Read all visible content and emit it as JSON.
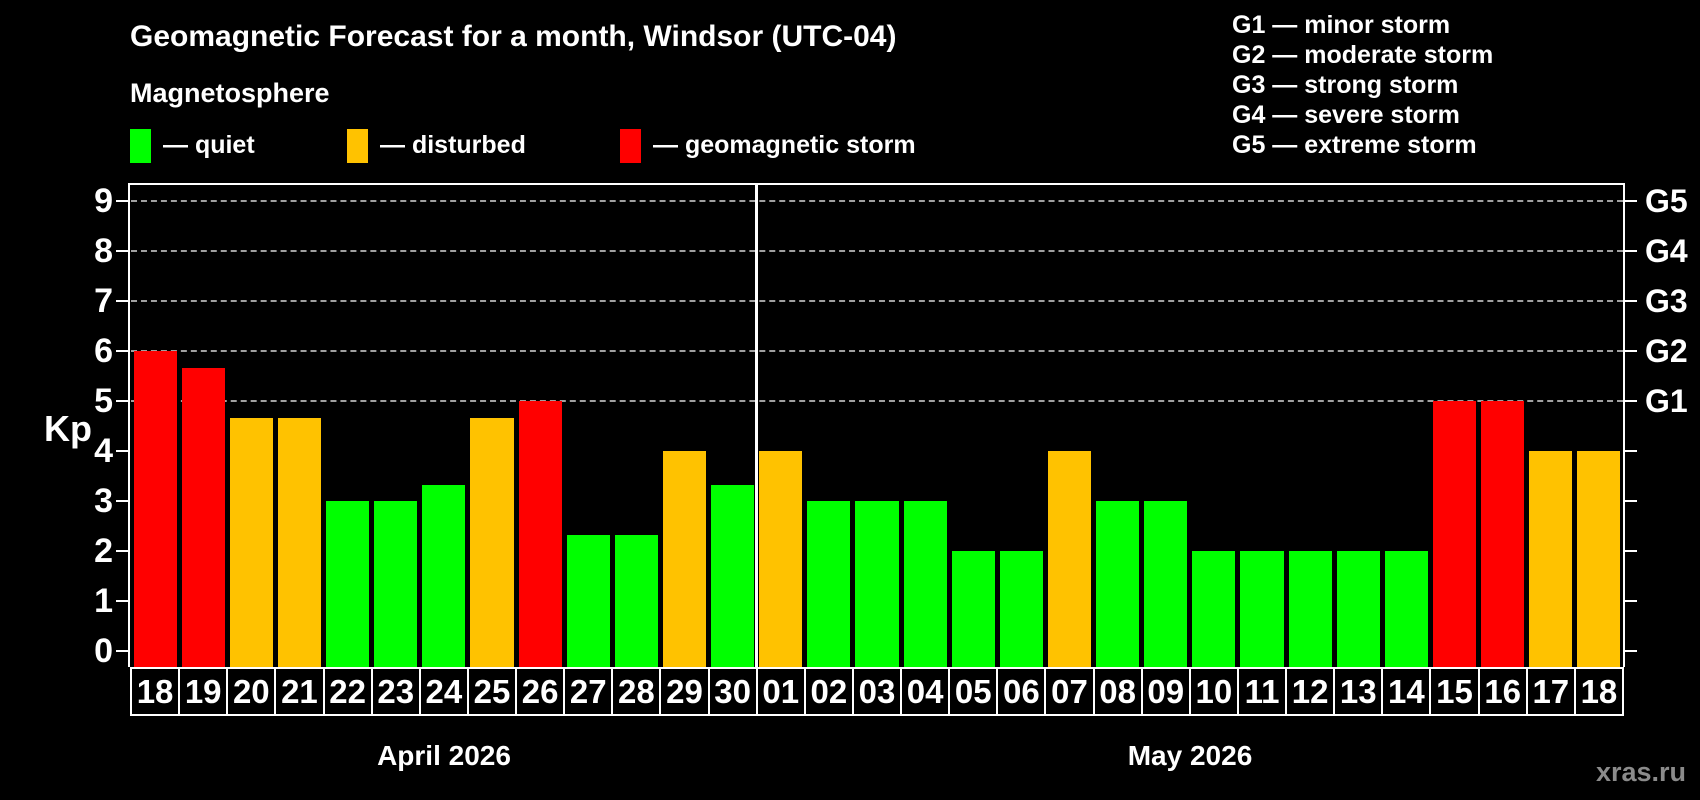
{
  "header": {
    "title": "Geomagnetic Forecast for a month, Windsor (UTC-04)",
    "subtitle": "Magnetosphere"
  },
  "legend": {
    "items": [
      {
        "key": "quiet",
        "label": "— quiet"
      },
      {
        "key": "disturbed",
        "label": "— disturbed"
      },
      {
        "key": "storm",
        "label": "— geomagnetic storm"
      }
    ]
  },
  "g_scale": {
    "items": [
      {
        "label": "G1 — minor storm"
      },
      {
        "label": "G2 — moderate storm"
      },
      {
        "label": "G3 — strong storm"
      },
      {
        "label": "G4 — severe storm"
      },
      {
        "label": "G5 — extreme storm"
      }
    ]
  },
  "colors": {
    "quiet": "#00ff00",
    "disturbed": "#ffc200",
    "storm": "#ff0000",
    "grid": "#a0a0a0",
    "axis": "#ffffff",
    "background": "#000000",
    "watermark": "#8b8b8b"
  },
  "watermark": "xras.ru",
  "chart_data": {
    "type": "bar",
    "title": "Geomagnetic Forecast for a month, Windsor (UTC-04)",
    "subtitle": "Magnetosphere",
    "xlabel": "",
    "ylabel": "Kp",
    "ylim": [
      0,
      9.36
    ],
    "yticks": [
      0,
      1,
      2,
      3,
      4,
      5,
      6,
      7,
      8,
      9
    ],
    "gridlines_at": [
      5,
      6,
      7,
      8,
      9
    ],
    "grid": true,
    "legend_position": "top-left",
    "right_axis_labels": [
      {
        "kp": 5,
        "label": "G1"
      },
      {
        "kp": 6,
        "label": "G2"
      },
      {
        "kp": 7,
        "label": "G3"
      },
      {
        "kp": 8,
        "label": "G4"
      },
      {
        "kp": 9,
        "label": "G5"
      }
    ],
    "months": [
      {
        "label": "April 2026",
        "days": [
          {
            "day": "18",
            "kp": 6.0,
            "level": "storm"
          },
          {
            "day": "19",
            "kp": 5.67,
            "level": "storm"
          },
          {
            "day": "20",
            "kp": 4.67,
            "level": "disturbed"
          },
          {
            "day": "21",
            "kp": 4.67,
            "level": "disturbed"
          },
          {
            "day": "22",
            "kp": 3.0,
            "level": "quiet"
          },
          {
            "day": "23",
            "kp": 3.0,
            "level": "quiet"
          },
          {
            "day": "24",
            "kp": 3.33,
            "level": "quiet"
          },
          {
            "day": "25",
            "kp": 4.67,
            "level": "disturbed"
          },
          {
            "day": "26",
            "kp": 5.0,
            "level": "storm"
          },
          {
            "day": "27",
            "kp": 2.33,
            "level": "quiet"
          },
          {
            "day": "28",
            "kp": 2.33,
            "level": "quiet"
          },
          {
            "day": "29",
            "kp": 4.0,
            "level": "disturbed"
          },
          {
            "day": "30",
            "kp": 3.33,
            "level": "quiet"
          }
        ]
      },
      {
        "label": "May 2026",
        "days": [
          {
            "day": "01",
            "kp": 4.0,
            "level": "disturbed"
          },
          {
            "day": "02",
            "kp": 3.0,
            "level": "quiet"
          },
          {
            "day": "03",
            "kp": 3.0,
            "level": "quiet"
          },
          {
            "day": "04",
            "kp": 3.0,
            "level": "quiet"
          },
          {
            "day": "05",
            "kp": 2.0,
            "level": "quiet"
          },
          {
            "day": "06",
            "kp": 2.0,
            "level": "quiet"
          },
          {
            "day": "07",
            "kp": 4.0,
            "level": "disturbed"
          },
          {
            "day": "08",
            "kp": 3.0,
            "level": "quiet"
          },
          {
            "day": "09",
            "kp": 3.0,
            "level": "quiet"
          },
          {
            "day": "10",
            "kp": 2.0,
            "level": "quiet"
          },
          {
            "day": "11",
            "kp": 2.0,
            "level": "quiet"
          },
          {
            "day": "12",
            "kp": 2.0,
            "level": "quiet"
          },
          {
            "day": "13",
            "kp": 2.0,
            "level": "quiet"
          },
          {
            "day": "14",
            "kp": 2.0,
            "level": "quiet"
          },
          {
            "day": "15",
            "kp": 5.0,
            "level": "storm"
          },
          {
            "day": "16",
            "kp": 5.0,
            "level": "storm"
          },
          {
            "day": "17",
            "kp": 4.0,
            "level": "disturbed"
          },
          {
            "day": "18",
            "kp": 4.0,
            "level": "disturbed"
          }
        ]
      }
    ]
  }
}
